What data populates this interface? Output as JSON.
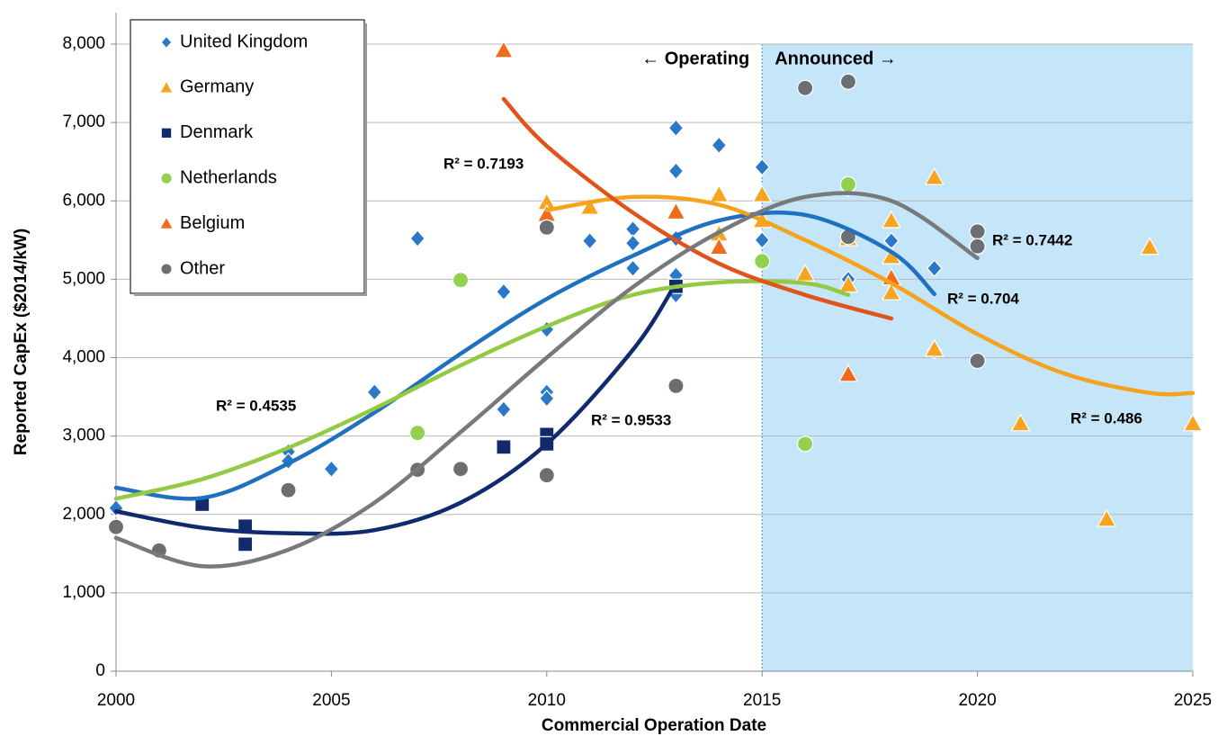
{
  "chart_data": {
    "type": "scatter",
    "x_label": "Commercial Operation Date",
    "y_label": "Reported CapEx ($2014/kW)",
    "xlim": [
      2000,
      2025
    ],
    "ylim": [
      0,
      8400
    ],
    "xticks": [
      2000,
      2005,
      2010,
      2015,
      2020,
      2025
    ],
    "yticks": [
      0,
      {
        "value": 1000,
        "label": "1,000"
      },
      {
        "value": 2000,
        "label": "2,000"
      },
      {
        "value": 3000,
        "label": "3,000"
      },
      {
        "value": 4000,
        "label": "4,000"
      },
      {
        "value": 5000,
        "label": "5,000"
      },
      {
        "value": 6000,
        "label": "6,000"
      },
      {
        "value": 7000,
        "label": "7,000"
      },
      {
        "value": 8000,
        "label": "8,000"
      }
    ],
    "grid": true,
    "legend": "top-left",
    "shaded_region": {
      "from": 2015,
      "to": 2025,
      "color": "#c5e5f8"
    },
    "annotations": [
      "← Operating",
      "Announced →"
    ],
    "series": [
      {
        "name": "United Kingdom",
        "color": "#2b78c8",
        "marker": "diamond",
        "x": [
          2000,
          2004,
          2004,
          2005,
          2006,
          2007,
          2009,
          2009,
          2010,
          2010,
          2010,
          2011,
          2012,
          2012,
          2012,
          2013,
          2013,
          2013,
          2013,
          2013,
          2014,
          2015,
          2015,
          2017,
          2017,
          2018,
          2019,
          2019
        ],
        "values": [
          2080,
          2800,
          2680,
          2580,
          3560,
          5520,
          4840,
          3340,
          4360,
          3560,
          3480,
          5490,
          5640,
          5460,
          5140,
          6930,
          6380,
          5520,
          5050,
          4800,
          6710,
          6430,
          5500,
          6160,
          5000,
          5490,
          5140,
          4090
        ],
        "trend_label": "R² = 0.704",
        "trend_color": "#1f70c0",
        "trend_x": [
          2000,
          2002,
          2004,
          2006,
          2008,
          2010,
          2012,
          2014,
          2016,
          2018,
          2019
        ],
        "trend_values": [
          2340,
          2210,
          2650,
          3300,
          4050,
          4750,
          5300,
          5750,
          5820,
          5350,
          4810
        ]
      },
      {
        "name": "Germany",
        "color": "#f7a520",
        "marker": "triangle",
        "x": [
          2010,
          2011,
          2014,
          2014,
          2015,
          2015,
          2016,
          2017,
          2017,
          2018,
          2018,
          2018,
          2019,
          2019,
          2021,
          2023,
          2024,
          2025
        ],
        "values": [
          5980,
          5920,
          6080,
          5580,
          6080,
          5750,
          5070,
          5520,
          4930,
          5750,
          5290,
          4830,
          6300,
          4110,
          3160,
          1940,
          5410,
          3160
        ],
        "trend_label": "R² = 0.486",
        "trend_color": "#f5a31a",
        "trend_x": [
          2010,
          2012,
          2014,
          2016,
          2018,
          2020,
          2022,
          2024,
          2025
        ],
        "trend_values": [
          5880,
          6050,
          5950,
          5500,
          4950,
          4300,
          3800,
          3550,
          3550
        ]
      },
      {
        "name": "Denmark",
        "color": "#102a6b",
        "marker": "square",
        "x": [
          2002,
          2003,
          2003,
          2009,
          2010,
          2010,
          2013
        ],
        "values": [
          2130,
          1850,
          1620,
          2860,
          3020,
          2900,
          4910
        ],
        "trend_label": "R² = 0.9533",
        "trend_color": "#102a6e",
        "trend_x": [
          2000,
          2002,
          2004,
          2006,
          2008,
          2010,
          2012,
          2013
        ],
        "trend_values": [
          2040,
          1830,
          1760,
          1800,
          2150,
          2900,
          4100,
          4950
        ]
      },
      {
        "name": "Netherlands",
        "color": "#92d050",
        "marker": "circle",
        "x": [
          2007,
          2008,
          2015,
          2016,
          2017
        ],
        "values": [
          3040,
          4990,
          5230,
          2900,
          6210
        ],
        "trend_label": "R² = 0.4535",
        "trend_color": "#94c942",
        "trend_x": [
          2000,
          2002,
          2004,
          2006,
          2008,
          2010,
          2012,
          2014,
          2016,
          2017
        ],
        "trend_values": [
          2200,
          2450,
          2850,
          3350,
          3900,
          4400,
          4800,
          4960,
          4950,
          4800
        ]
      },
      {
        "name": "Belgium",
        "color": "#f26b1d",
        "marker": "triangle",
        "x": [
          2009,
          2010,
          2013,
          2014,
          2017,
          2018
        ],
        "values": [
          7920,
          5830,
          5860,
          5410,
          3790,
          5020
        ],
        "trend_label": "R² = 0.7193",
        "trend_color": "#e0541c",
        "trend_x": [
          2009,
          2010,
          2012,
          2014,
          2016,
          2018
        ],
        "trend_values": [
          7300,
          6700,
          5850,
          5200,
          4800,
          4500
        ]
      },
      {
        "name": "Other",
        "color": "#6b6e73",
        "marker": "circle",
        "x": [
          2000,
          2001,
          2004,
          2007,
          2008,
          2010,
          2010,
          2013,
          2016,
          2017,
          2017,
          2020,
          2020,
          2020
        ],
        "values": [
          1840,
          1540,
          2310,
          2570,
          2580,
          5660,
          2500,
          3640,
          7440,
          7520,
          5540,
          5610,
          5420,
          3960
        ],
        "trend_label": "R² = 0.7442",
        "trend_color": "#77797d",
        "trend_x": [
          2000,
          2002,
          2004,
          2006,
          2008,
          2010,
          2012,
          2014,
          2016,
          2018,
          2020
        ],
        "trend_values": [
          1700,
          1340,
          1550,
          2150,
          3050,
          4000,
          4900,
          5600,
          6050,
          6000,
          5270
        ]
      }
    ]
  }
}
